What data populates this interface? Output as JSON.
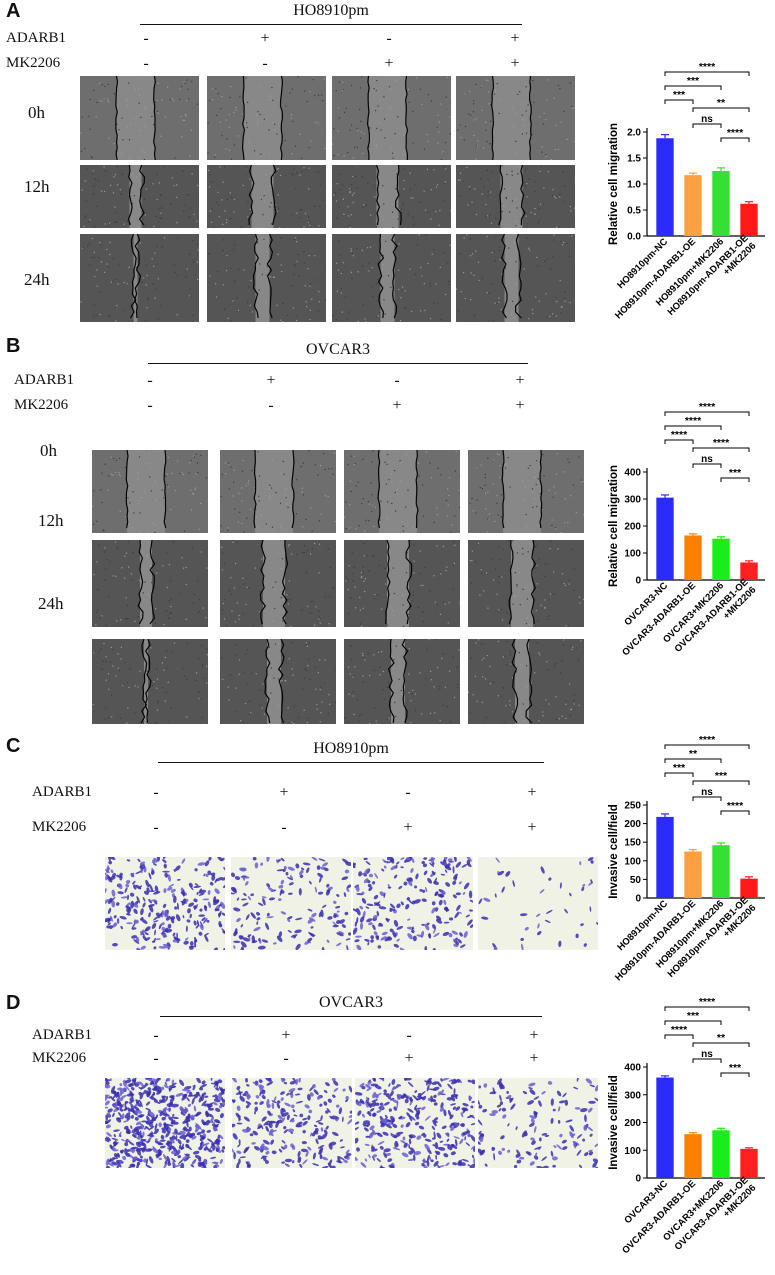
{
  "panels": [
    {
      "label": "A",
      "cell_line": "HO8910pm",
      "rows": [
        {
          "label": "ADARB1",
          "signs": [
            "-",
            "+",
            "-",
            "+"
          ]
        },
        {
          "label": "MK2206",
          "signs": [
            "-",
            "-",
            "+",
            "+"
          ]
        }
      ],
      "time_labels": [
        "0h",
        "12h",
        "24h"
      ],
      "image_type": "wound-healing",
      "chart_data": {
        "type": "bar",
        "ylabel": "Relative cell migration",
        "ylim": [
          0,
          2.0
        ],
        "yticks": [
          0.0,
          0.5,
          1.0,
          1.5,
          2.0
        ],
        "categories": [
          "HO8910pm-NC",
          "HO8910pm-ADARB1-OE",
          "HO8910pm+MK2206",
          "HO8910pm-ADARB1-OE\n+MK2206"
        ],
        "values": [
          1.88,
          1.17,
          1.25,
          0.62
        ],
        "errors": [
          0.07,
          0.04,
          0.06,
          0.04
        ],
        "colors": [
          "#2b2bff",
          "#ffa040",
          "#33e033",
          "#ff1a1a"
        ],
        "significance": [
          {
            "from": 0,
            "to": 3,
            "label": "****"
          },
          {
            "from": 0,
            "to": 2,
            "label": "***"
          },
          {
            "from": 0,
            "to": 1,
            "label": "***"
          },
          {
            "from": 1,
            "to": 3,
            "label": "**"
          },
          {
            "from": 1,
            "to": 2,
            "label": "ns"
          },
          {
            "from": 2,
            "to": 3,
            "label": "****"
          }
        ]
      }
    },
    {
      "label": "B",
      "cell_line": "OVCAR3",
      "rows": [
        {
          "label": "ADARB1",
          "signs": [
            "-",
            "+",
            "-",
            "+"
          ]
        },
        {
          "label": "MK2206",
          "signs": [
            "-",
            "-",
            "+",
            "+"
          ]
        }
      ],
      "time_labels": [
        "0h",
        "12h",
        "24h"
      ],
      "image_type": "wound-healing",
      "chart_data": {
        "type": "bar",
        "ylabel": "Relative cell migration",
        "ylim": [
          0,
          400
        ],
        "yticks": [
          0,
          100,
          200,
          300,
          400
        ],
        "categories": [
          "OVCAR3-NC",
          "OVCAR3-ADARB1-OE",
          "OVCAR3+MK2206",
          "OVCAR3-ADARB1-OE\n+MK2206"
        ],
        "values": [
          305,
          165,
          153,
          65
        ],
        "errors": [
          10,
          6,
          7,
          6
        ],
        "colors": [
          "#2b2bff",
          "#ff8000",
          "#1aee1a",
          "#ff2020"
        ],
        "significance": [
          {
            "from": 0,
            "to": 3,
            "label": "****"
          },
          {
            "from": 0,
            "to": 2,
            "label": "****"
          },
          {
            "from": 0,
            "to": 1,
            "label": "****"
          },
          {
            "from": 1,
            "to": 3,
            "label": "****"
          },
          {
            "from": 1,
            "to": 2,
            "label": "ns"
          },
          {
            "from": 2,
            "to": 3,
            "label": "***"
          }
        ]
      }
    },
    {
      "label": "C",
      "cell_line": "HO8910pm",
      "rows": [
        {
          "label": "ADARB1",
          "signs": [
            "-",
            "+",
            "-",
            "+"
          ]
        },
        {
          "label": "MK2206",
          "signs": [
            "-",
            "-",
            "+",
            "+"
          ]
        }
      ],
      "time_labels": [],
      "image_type": "transwell",
      "chart_data": {
        "type": "bar",
        "ylabel": "Invasive cell/field",
        "ylim": [
          0,
          250
        ],
        "yticks": [
          0,
          50,
          100,
          150,
          200,
          250
        ],
        "categories": [
          "HO8910pm-NC",
          "HO8910pm-ADARB1-OE",
          "HO8910pm+MK2206",
          "HO8910pm-ADARB1-OE\n+MK2206"
        ],
        "values": [
          218,
          125,
          142,
          52
        ],
        "errors": [
          8,
          5,
          6,
          5
        ],
        "colors": [
          "#2b2bff",
          "#ffa040",
          "#33e033",
          "#ff1a1a"
        ],
        "significance": [
          {
            "from": 0,
            "to": 3,
            "label": "****"
          },
          {
            "from": 0,
            "to": 2,
            "label": "**"
          },
          {
            "from": 0,
            "to": 1,
            "label": "***"
          },
          {
            "from": 1,
            "to": 3,
            "label": "***"
          },
          {
            "from": 1,
            "to": 2,
            "label": "ns"
          },
          {
            "from": 2,
            "to": 3,
            "label": "****"
          }
        ]
      }
    },
    {
      "label": "D",
      "cell_line": "OVCAR3",
      "rows": [
        {
          "label": "ADARB1",
          "signs": [
            "-",
            "+",
            "-",
            "+"
          ]
        },
        {
          "label": "MK2206",
          "signs": [
            "-",
            "-",
            "+",
            "+"
          ]
        }
      ],
      "time_labels": [],
      "image_type": "transwell",
      "chart_data": {
        "type": "bar",
        "ylabel": "Invasive cell/field",
        "ylim": [
          0,
          400
        ],
        "yticks": [
          0,
          100,
          200,
          300,
          400
        ],
        "categories": [
          "OVCAR3-NC",
          "OVCAR3-ADARB1-OE",
          "OVCAR3+MK2206",
          "OVCAR3-ADARB1-OE\n+MK2206"
        ],
        "values": [
          362,
          158,
          172,
          105
        ],
        "errors": [
          6,
          5,
          7,
          4
        ],
        "colors": [
          "#2b2bff",
          "#ff8000",
          "#1aee1a",
          "#ff2020"
        ],
        "significance": [
          {
            "from": 0,
            "to": 3,
            "label": "****"
          },
          {
            "from": 0,
            "to": 2,
            "label": "***"
          },
          {
            "from": 0,
            "to": 1,
            "label": "****"
          },
          {
            "from": 1,
            "to": 3,
            "label": "**"
          },
          {
            "from": 1,
            "to": 2,
            "label": "ns"
          },
          {
            "from": 2,
            "to": 3,
            "label": "***"
          }
        ]
      }
    }
  ]
}
